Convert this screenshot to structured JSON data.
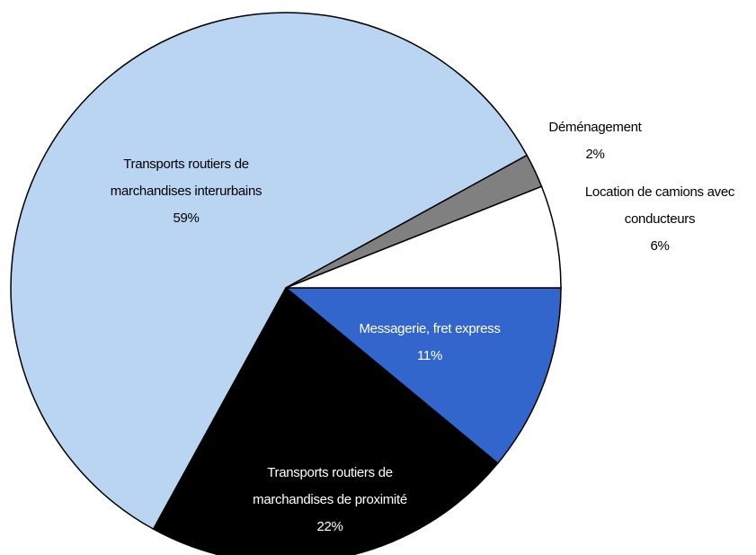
{
  "chart_data": {
    "type": "pie",
    "categories": [
      "Messagerie, fret express",
      "Transports routiers de marchandises de proximité",
      "Transports routiers de marchandises interurbains",
      "Déménagement",
      "Location de camions avec conducteurs"
    ],
    "values": [
      11,
      22,
      59,
      2,
      6
    ],
    "value_labels": [
      "11%",
      "22%",
      "59%",
      "2%",
      "6%"
    ],
    "colors": [
      "#3366cc",
      "#000000",
      "#b9d5f2",
      "#808080",
      "#ffffff"
    ]
  }
}
